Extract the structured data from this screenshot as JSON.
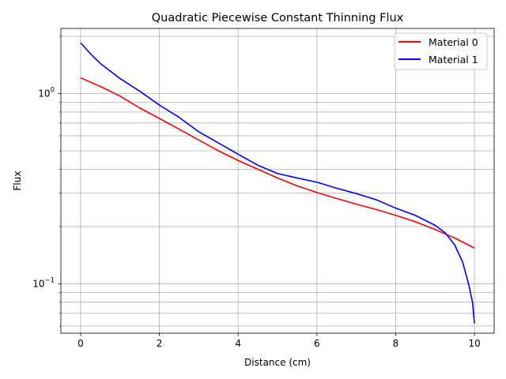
{
  "chart_data": {
    "type": "line",
    "title": "Quadratic Piecewise Constant Thinning Flux",
    "xlabel": "Distance (cm)",
    "ylabel": "Flux",
    "xlim": [
      -0.5,
      10.5
    ],
    "ylim": [
      0.055,
      2.2
    ],
    "yscale": "log",
    "grid": true,
    "legend_position": "top-right",
    "x_ticks": [
      0,
      2,
      4,
      6,
      8,
      10
    ],
    "x_tick_labels": [
      "0",
      "2",
      "4",
      "6",
      "8",
      "10"
    ],
    "y_major_ticks": [
      0.1,
      1.0
    ],
    "y_major_tick_labels": [
      "10^-1",
      "10^0"
    ],
    "series": [
      {
        "name": "Material 0",
        "color": "#ff0000",
        "x": [
          0,
          0.5,
          1,
          1.5,
          2,
          2.5,
          3,
          3.5,
          4,
          4.5,
          5,
          5.5,
          6,
          6.5,
          7,
          7.5,
          8,
          8.5,
          9,
          9.5,
          10
        ],
        "y": [
          1.21,
          1.09,
          0.97,
          0.84,
          0.74,
          0.65,
          0.57,
          0.5,
          0.445,
          0.4,
          0.36,
          0.327,
          0.302,
          0.281,
          0.262,
          0.246,
          0.229,
          0.212,
          0.193,
          0.174,
          0.154
        ]
      },
      {
        "name": "Material 1",
        "color": "#0000ff",
        "x": [
          0,
          0.25,
          0.5,
          1,
          1.5,
          2,
          2.5,
          3,
          3.5,
          4,
          4.5,
          5,
          5.5,
          6,
          6.5,
          7,
          7.5,
          8,
          8.5,
          9,
          9.25,
          9.5,
          9.7,
          9.85,
          9.95,
          10
        ],
        "y": [
          1.85,
          1.62,
          1.44,
          1.2,
          1.03,
          0.87,
          0.75,
          0.63,
          0.55,
          0.48,
          0.42,
          0.38,
          0.36,
          0.342,
          0.318,
          0.298,
          0.277,
          0.25,
          0.229,
          0.203,
          0.186,
          0.16,
          0.13,
          0.1,
          0.08,
          0.062
        ]
      }
    ]
  }
}
